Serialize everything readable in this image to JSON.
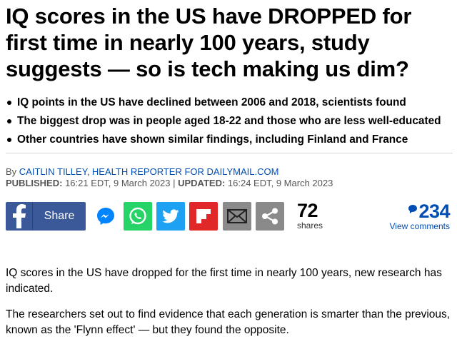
{
  "headline": "IQ scores in the US have DROPPED for first time in nearly 100 years, study suggests — so is tech making us dim?",
  "bullets": [
    "IQ points in the US have declined between 2006 and 2018, scientists found",
    "The biggest drop was in people aged 18-22 and those who are less well-educated",
    "Other countries have shown similar findings, including Finland and France"
  ],
  "byline": {
    "prefix": "By ",
    "author": "CAITLIN TILLEY, HEALTH REPORTER FOR DAILYMAIL.COM"
  },
  "dates": {
    "published_label": "PUBLISHED:",
    "published_value": " 16:21 EDT, 9 March 2023 | ",
    "updated_label": "UPDATED:",
    "updated_value": " 16:24 EDT, 9 March 2023"
  },
  "share": {
    "facebook_label": "Share",
    "count": "72",
    "count_label": "shares",
    "icons": [
      "facebook-icon",
      "messenger-icon",
      "whatsapp-icon",
      "twitter-icon",
      "flipboard-icon",
      "mail-icon",
      "share-icon"
    ],
    "colors": {
      "facebook": "#3b5998",
      "whatsapp": "#25d366",
      "twitter": "#1da1f2",
      "flipboard": "#e12828",
      "grey": "#8a8a8a"
    }
  },
  "comments": {
    "count": "234",
    "label": "View comments",
    "color": "#004db3"
  },
  "body": [
    "IQ scores in the US have dropped for the first time in nearly 100 years, new research has indicated.",
    "The researchers set out to find evidence that each generation is smarter than the previous, known as the 'Flynn effect' — but they found the opposite."
  ]
}
